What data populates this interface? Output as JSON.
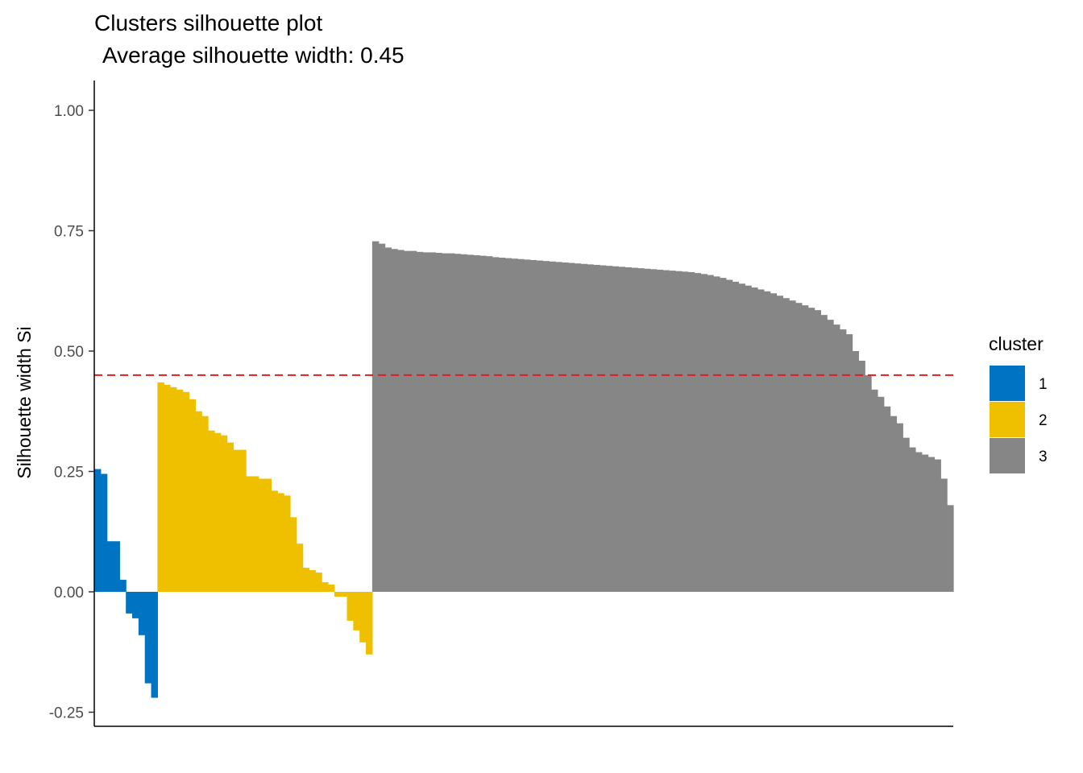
{
  "chart_data": {
    "type": "bar",
    "title": "Clusters silhouette plot",
    "subtitle": "Average silhouette width: 0.45",
    "xlabel": "",
    "ylabel": "Silhouette width Si",
    "ylim": [
      -0.28,
      1.06
    ],
    "yticks": [
      "1.00",
      "0.75",
      "0.50",
      "0.25",
      "0.00",
      "-0.25"
    ],
    "ytick_values": [
      1.0,
      0.75,
      0.5,
      0.25,
      0.0,
      -0.25
    ],
    "grid": false,
    "reference_line": {
      "value": 0.45,
      "style": "dashed",
      "color": "#e41a1c"
    },
    "legend": {
      "title": "cluster",
      "position": "right"
    },
    "series": [
      {
        "name": "1",
        "color": "#0073c2",
        "values": [
          0.255,
          0.245,
          0.105,
          0.105,
          0.025,
          -0.045,
          -0.055,
          -0.09,
          -0.19,
          -0.22
        ]
      },
      {
        "name": "2",
        "color": "#efc000",
        "values": [
          0.435,
          0.43,
          0.425,
          0.42,
          0.415,
          0.4,
          0.375,
          0.365,
          0.335,
          0.33,
          0.325,
          0.31,
          0.295,
          0.295,
          0.24,
          0.24,
          0.235,
          0.235,
          0.21,
          0.205,
          0.2,
          0.155,
          0.1,
          0.05,
          0.045,
          0.04,
          0.02,
          0.015,
          -0.01,
          -0.01,
          -0.06,
          -0.08,
          -0.105,
          -0.13
        ]
      },
      {
        "name": "3",
        "color": "#868686",
        "values": [
          0.728,
          0.723,
          0.715,
          0.712,
          0.71,
          0.708,
          0.708,
          0.706,
          0.705,
          0.705,
          0.704,
          0.703,
          0.703,
          0.702,
          0.701,
          0.7,
          0.699,
          0.698,
          0.697,
          0.695,
          0.694,
          0.693,
          0.692,
          0.691,
          0.69,
          0.689,
          0.688,
          0.687,
          0.686,
          0.685,
          0.684,
          0.683,
          0.682,
          0.681,
          0.68,
          0.679,
          0.678,
          0.677,
          0.676,
          0.675,
          0.674,
          0.673,
          0.672,
          0.671,
          0.67,
          0.669,
          0.668,
          0.667,
          0.666,
          0.665,
          0.664,
          0.662,
          0.66,
          0.658,
          0.655,
          0.652,
          0.648,
          0.644,
          0.64,
          0.636,
          0.632,
          0.628,
          0.624,
          0.62,
          0.615,
          0.61,
          0.605,
          0.6,
          0.595,
          0.59,
          0.585,
          0.575,
          0.565,
          0.555,
          0.545,
          0.535,
          0.5,
          0.48,
          0.45,
          0.42,
          0.405,
          0.385,
          0.365,
          0.35,
          0.32,
          0.3,
          0.29,
          0.285,
          0.28,
          0.275,
          0.235,
          0.18
        ]
      }
    ]
  }
}
